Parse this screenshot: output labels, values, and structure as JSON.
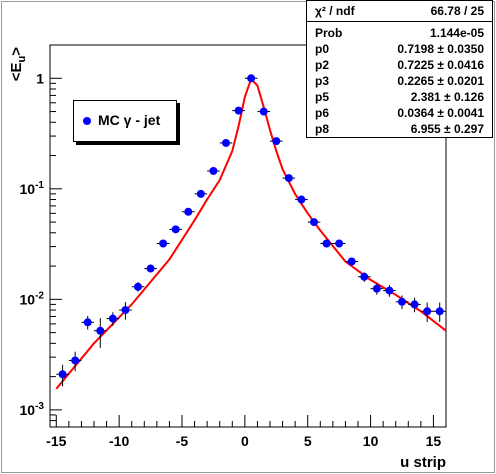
{
  "chart_data": {
    "type": "scatter",
    "xlabel": "u strip",
    "ylabel": "<E_u>",
    "xlim": [
      -15.5,
      16
    ],
    "ylim": [
      0.0007,
      2
    ],
    "yscale": "log",
    "x_ticks": [
      "-15",
      "-10",
      "-5",
      "0",
      "5",
      "10",
      "15"
    ],
    "y_ticks": [
      "1",
      "10^-1",
      "10^-2",
      "10^-3"
    ],
    "legend": "top-left",
    "series": [
      {
        "name": "MC γ - jet",
        "color": "#0000ff",
        "marker": "circle",
        "x": [
          -14.5,
          -13.5,
          -12.5,
          -11.5,
          -10.5,
          -9.5,
          -8.5,
          -7.5,
          -6.5,
          -5.5,
          -4.5,
          -3.5,
          -2.5,
          -1.5,
          -0.5,
          0.5,
          1.5,
          2.5,
          3.5,
          4.5,
          5.5,
          6.5,
          7.5,
          8.5,
          9.5,
          10.5,
          11.5,
          12.5,
          13.5,
          14.5,
          15.5
        ],
        "y": [
          0.0021,
          0.0028,
          0.0062,
          0.0052,
          0.0067,
          0.008,
          0.013,
          0.019,
          0.032,
          0.043,
          0.062,
          0.09,
          0.145,
          0.26,
          0.51,
          1.0,
          0.5,
          0.27,
          0.125,
          0.08,
          0.05,
          0.032,
          0.032,
          0.022,
          0.016,
          0.0125,
          0.012,
          0.0095,
          0.009,
          0.0078,
          0.0078
        ],
        "yerr_rel": [
          0.22,
          0.2,
          0.14,
          0.3,
          0.14,
          0.18,
          0.1,
          0.07,
          0.05,
          0.05,
          0.04,
          0.04,
          0.03,
          0.03,
          0.03,
          0.02,
          0.03,
          0.03,
          0.04,
          0.05,
          0.05,
          0.07,
          0.07,
          0.08,
          0.1,
          0.12,
          0.12,
          0.14,
          0.15,
          0.2,
          0.2
        ]
      },
      {
        "name": "fit",
        "color": "#ff0000",
        "type": "line",
        "x": [
          -15,
          -12,
          -9,
          -6,
          -4,
          -3,
          -2,
          -1,
          -0.5,
          0,
          0.5,
          1,
          1.5,
          2,
          2.5,
          3,
          4,
          5,
          6,
          8,
          10,
          12,
          14,
          16
        ],
        "y": [
          0.00155,
          0.004,
          0.009,
          0.023,
          0.052,
          0.08,
          0.12,
          0.22,
          0.37,
          0.68,
          0.98,
          0.86,
          0.55,
          0.34,
          0.22,
          0.15,
          0.09,
          0.06,
          0.042,
          0.022,
          0.015,
          0.011,
          0.0078,
          0.0052
        ]
      }
    ]
  },
  "stats": {
    "rows": [
      {
        "name": "χ² / ndf",
        "value": "66.78 / 25"
      },
      {
        "name": "Prob",
        "value": "1.144e-05"
      },
      {
        "name": "p0",
        "value": "0.7198 ± 0.0350"
      },
      {
        "name": "p2",
        "value": "0.7225 ± 0.0416"
      },
      {
        "name": "p3",
        "value": "0.2265 ± 0.0201"
      },
      {
        "name": "p5",
        "value": "2.381 ± 0.126"
      },
      {
        "name": "p6",
        "value": "0.0364 ± 0.0041"
      },
      {
        "name": "p8",
        "value": "6.955 ± 0.297"
      }
    ]
  },
  "legend_label": "MC γ - jet"
}
